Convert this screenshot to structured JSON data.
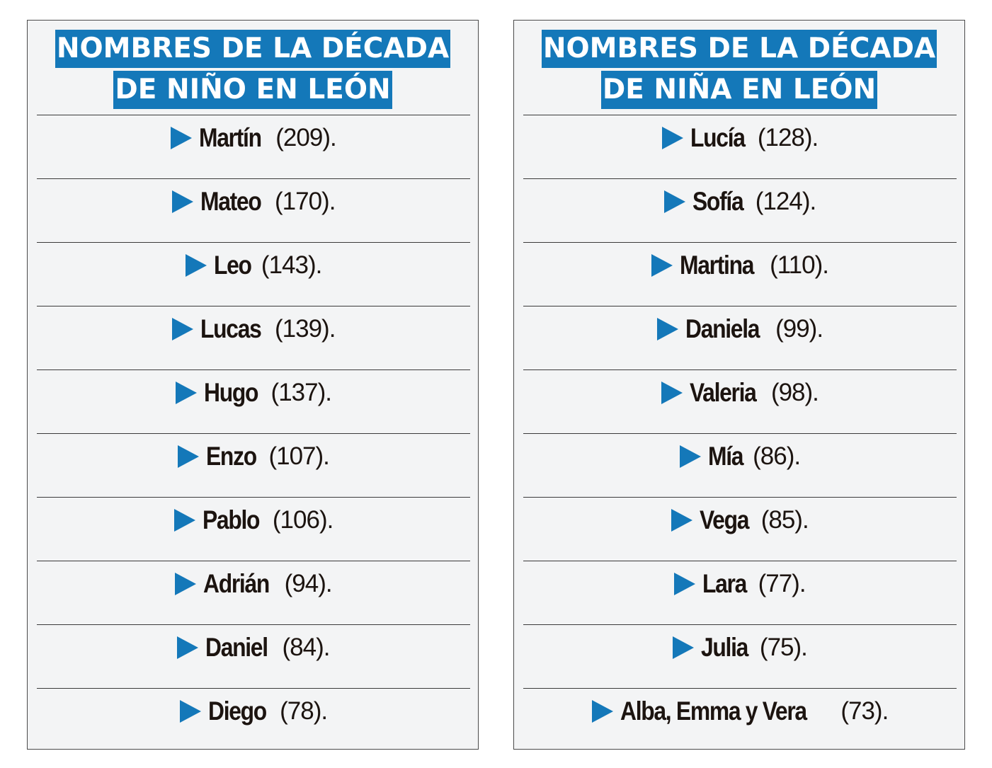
{
  "colors": {
    "accent": "#1478b9",
    "panel_bg": "#f3f4f5",
    "text": "#1c1410"
  },
  "boys": {
    "title_line1": "NOMBRES DE LA DÉCADA",
    "title_line2": "DE NIÑO EN LEÓN",
    "items": [
      {
        "name": "Martín",
        "count": "(209)."
      },
      {
        "name": "Mateo",
        "count": "(170)."
      },
      {
        "name": "Leo",
        "count": "(143)."
      },
      {
        "name": "Lucas",
        "count": "(139)."
      },
      {
        "name": "Hugo",
        "count": "(137)."
      },
      {
        "name": "Enzo",
        "count": "(107)."
      },
      {
        "name": "Pablo",
        "count": "(106)."
      },
      {
        "name": "Adrián",
        "count": "(94)."
      },
      {
        "name": "Daniel",
        "count": "(84)."
      },
      {
        "name": "Diego",
        "count": "(78)."
      }
    ]
  },
  "girls": {
    "title_line1": "NOMBRES DE LA DÉCADA",
    "title_line2": "DE NIÑA EN LEÓN",
    "items": [
      {
        "name": "Lucía",
        "count": "(128)."
      },
      {
        "name": "Sofía",
        "count": "(124)."
      },
      {
        "name": "Martina",
        "count": "(110)."
      },
      {
        "name": "Daniela",
        "count": "(99)."
      },
      {
        "name": "Valeria",
        "count": "(98)."
      },
      {
        "name": "Mía",
        "count": "(86)."
      },
      {
        "name": "Vega",
        "count": "(85)."
      },
      {
        "name": "Lara",
        "count": "(77)."
      },
      {
        "name": "Julia",
        "count": "(75)."
      },
      {
        "name": "Alba, Emma y Vera",
        "count": "(73)."
      }
    ]
  }
}
